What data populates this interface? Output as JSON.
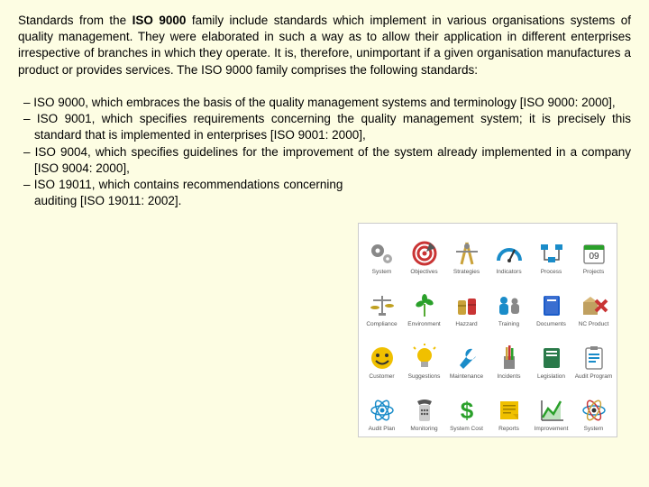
{
  "intro": {
    "pre": "Standards from the ",
    "bold": "ISO 9000",
    "post": " family include standards which implement in various organisations systems of quality management. They were elaborated in such a way as to allow their application in different enterprises irrespective of branches in which they operate. It is, therefore, unimportant if a given organisation manufactures a product or provides services. The ISO 9000 family comprises the following standards:"
  },
  "items": [
    "– ISO 9000, which embraces the basis of the quality management systems and terminology [ISO 9000: 2000],",
    "– ISO 9001, which specifies requirements concerning the quality management system; it is precisely this standard that is implemented in enterprises [ISO 9001: 2000],",
    "– ISO 9004, which specifies guidelines for the improvement of the system already implemented in a company [ISO 9004: 2000],",
    "– ISO 19011, which contains recommendations concerning auditing [ISO 19011: 2002]."
  ],
  "icons": [
    {
      "label": "System",
      "kind": "gears",
      "color": "#888888"
    },
    {
      "label": "Objectives",
      "kind": "target",
      "color": "#c93434"
    },
    {
      "label": "Strategies",
      "kind": "compass",
      "color": "#caa23a"
    },
    {
      "label": "Indicators",
      "kind": "gauge",
      "color": "#1a8cc9"
    },
    {
      "label": "Process",
      "kind": "flow",
      "color": "#1a8cc9"
    },
    {
      "label": "Projects",
      "kind": "calendar",
      "color": "#2aa02a"
    },
    {
      "label": "Compliance",
      "kind": "scale",
      "color": "#c0a020"
    },
    {
      "label": "Environment",
      "kind": "plant",
      "color": "#2aa02a"
    },
    {
      "label": "Hazzard",
      "kind": "barrels",
      "color": "#caa23a"
    },
    {
      "label": "Training",
      "kind": "people",
      "color": "#1a8cc9"
    },
    {
      "label": "Documents",
      "kind": "book",
      "color": "#1a5cc9"
    },
    {
      "label": "NC Product",
      "kind": "box-x",
      "color": "#c93434"
    },
    {
      "label": "Customer",
      "kind": "smile",
      "color": "#f0c000"
    },
    {
      "label": "Suggestions",
      "kind": "bulb",
      "color": "#f0c000"
    },
    {
      "label": "Maintenance",
      "kind": "wrench",
      "color": "#1a8cc9"
    },
    {
      "label": "Incidents",
      "kind": "pencils",
      "color": "#caa23a"
    },
    {
      "label": "Legislation",
      "kind": "book2",
      "color": "#2a7a4a"
    },
    {
      "label": "Audit Program",
      "kind": "clipboard",
      "color": "#1a8cc9"
    },
    {
      "label": "Audit Plan",
      "kind": "atom",
      "color": "#1a8cc9"
    },
    {
      "label": "Monitoring",
      "kind": "phone",
      "color": "#555555"
    },
    {
      "label": "System Cost",
      "kind": "dollar",
      "color": "#2aa02a"
    },
    {
      "label": "Reports",
      "kind": "note",
      "color": "#f0c000"
    },
    {
      "label": "Improvement",
      "kind": "chart",
      "color": "#2aa02a"
    },
    {
      "label": "System",
      "kind": "atom2",
      "color": "#1a8cc9"
    }
  ]
}
